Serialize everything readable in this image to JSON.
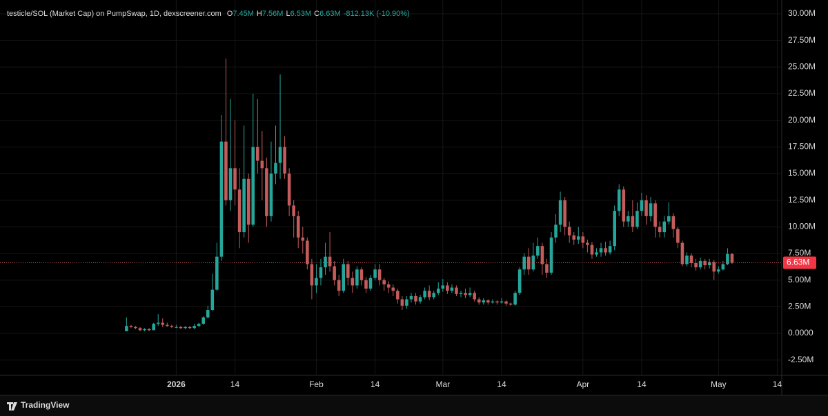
{
  "chart_data": {
    "type": "candlestick",
    "title": "testicle/SOL (Market Cap) on PumpSwap, 1D, dexscreener.com",
    "ohlc_legend": [
      {
        "key": "O",
        "value": "7.45M"
      },
      {
        "key": "H",
        "value": "7.56M"
      },
      {
        "key": "L",
        "value": "6.53M"
      },
      {
        "key": "C",
        "value": "6.63M"
      }
    ],
    "change": "-812.13K (-10.90%)",
    "last_price": {
      "value": 6.63,
      "label": "6.63M"
    },
    "up_color": "#26a69a",
    "down_color": "#c45c5c",
    "grid": true,
    "footer": "TradingView",
    "xlim": [
      "2025-11-23",
      "2026-05-15"
    ],
    "xticks": [
      {
        "value": "2026-01-01",
        "label": "2026"
      },
      {
        "value": "2026-01-14",
        "label": "14"
      },
      {
        "value": "2026-02-01",
        "label": "Feb"
      },
      {
        "value": "2026-02-14",
        "label": "14"
      },
      {
        "value": "2026-03-01",
        "label": "Mar"
      },
      {
        "value": "2026-03-14",
        "label": "14"
      },
      {
        "value": "2026-04-01",
        "label": "Apr"
      },
      {
        "value": "2026-04-14",
        "label": "14"
      },
      {
        "value": "2026-05-01",
        "label": "May"
      },
      {
        "value": "2026-05-14",
        "label": "14"
      }
    ],
    "ylim": [
      -3.94,
      31.29
    ],
    "yticks": [
      {
        "value": -2.5,
        "label": "-2.50M"
      },
      {
        "value": 0,
        "label": "0.0000"
      },
      {
        "value": 2.5,
        "label": "2.50M"
      },
      {
        "value": 5,
        "label": "5.00M"
      },
      {
        "value": 7.5,
        "label": "7.50M"
      },
      {
        "value": 10,
        "label": "10.00M"
      },
      {
        "value": 12.5,
        "label": "12.50M"
      },
      {
        "value": 15,
        "label": "15.00M"
      },
      {
        "value": 17.5,
        "label": "17.50M"
      },
      {
        "value": 20,
        "label": "20.00M"
      },
      {
        "value": 22.5,
        "label": "22.50M"
      },
      {
        "value": 25,
        "label": "25.00M"
      },
      {
        "value": 27.5,
        "label": "27.50M"
      },
      {
        "value": 30,
        "label": "30.00M"
      }
    ],
    "x": [
      "2025-12-21",
      "2025-12-22",
      "2025-12-23",
      "2025-12-24",
      "2025-12-25",
      "2025-12-26",
      "2025-12-27",
      "2025-12-28",
      "2025-12-29",
      "2025-12-30",
      "2025-12-31",
      "2026-01-01",
      "2026-01-02",
      "2026-01-03",
      "2026-01-04",
      "2026-01-05",
      "2026-01-06",
      "2026-01-07",
      "2026-01-08",
      "2026-01-09",
      "2026-01-10",
      "2026-01-11",
      "2026-01-12",
      "2026-01-13",
      "2026-01-14",
      "2026-01-15",
      "2026-01-16",
      "2026-01-17",
      "2026-01-18",
      "2026-01-19",
      "2026-01-20",
      "2026-01-21",
      "2026-01-22",
      "2026-01-23",
      "2026-01-24",
      "2026-01-25",
      "2026-01-26",
      "2026-01-27",
      "2026-01-28",
      "2026-01-29",
      "2026-01-30",
      "2026-01-31",
      "2026-02-01",
      "2026-02-02",
      "2026-02-03",
      "2026-02-04",
      "2026-02-05",
      "2026-02-06",
      "2026-02-07",
      "2026-02-08",
      "2026-02-09",
      "2026-02-10",
      "2026-02-11",
      "2026-02-12",
      "2026-02-13",
      "2026-02-14",
      "2026-02-15",
      "2026-02-16",
      "2026-02-17",
      "2026-02-18",
      "2026-02-19",
      "2026-02-20",
      "2026-02-21",
      "2026-02-22",
      "2026-02-23",
      "2026-02-24",
      "2026-02-25",
      "2026-02-26",
      "2026-02-27",
      "2026-02-28",
      "2026-03-01",
      "2026-03-02",
      "2026-03-03",
      "2026-03-04",
      "2026-03-05",
      "2026-03-06",
      "2026-03-07",
      "2026-03-08",
      "2026-03-09",
      "2026-03-10",
      "2026-03-11",
      "2026-03-12",
      "2026-03-13",
      "2026-03-14",
      "2026-03-15",
      "2026-03-16",
      "2026-03-17",
      "2026-03-18",
      "2026-03-19",
      "2026-03-20",
      "2026-03-21",
      "2026-03-22",
      "2026-03-23",
      "2026-03-24",
      "2026-03-25",
      "2026-03-26",
      "2026-03-27",
      "2026-03-28",
      "2026-03-29",
      "2026-03-30",
      "2026-03-31",
      "2026-04-01",
      "2026-04-02",
      "2026-04-03",
      "2026-04-04",
      "2026-04-05",
      "2026-04-06",
      "2026-04-07",
      "2026-04-08",
      "2026-04-09",
      "2026-04-10",
      "2026-04-11",
      "2026-04-12",
      "2026-04-13",
      "2026-04-14",
      "2026-04-15",
      "2026-04-16",
      "2026-04-17",
      "2026-04-18",
      "2026-04-19",
      "2026-04-20",
      "2026-04-21",
      "2026-04-22",
      "2026-04-23",
      "2026-04-24",
      "2026-04-25",
      "2026-04-26",
      "2026-04-27",
      "2026-04-28",
      "2026-04-29",
      "2026-04-30",
      "2026-05-01",
      "2026-05-02",
      "2026-05-03",
      "2026-05-04"
    ],
    "candles": [
      [
        0.2,
        1.5,
        0.2,
        0.7
      ],
      [
        0.7,
        0.8,
        0.5,
        0.6
      ],
      [
        0.6,
        0.7,
        0.4,
        0.5
      ],
      [
        0.5,
        0.6,
        0.2,
        0.3
      ],
      [
        0.3,
        0.5,
        0.2,
        0.4
      ],
      [
        0.4,
        0.5,
        0.2,
        0.3
      ],
      [
        0.3,
        1.0,
        0.3,
        0.9
      ],
      [
        0.9,
        1.8,
        0.7,
        1.0
      ],
      [
        1.0,
        1.4,
        0.6,
        0.8
      ],
      [
        0.8,
        1.0,
        0.6,
        0.7
      ],
      [
        0.7,
        0.8,
        0.5,
        0.6
      ],
      [
        0.6,
        0.8,
        0.5,
        0.6
      ],
      [
        0.6,
        0.7,
        0.4,
        0.5
      ],
      [
        0.5,
        0.7,
        0.4,
        0.6
      ],
      [
        0.6,
        0.7,
        0.4,
        0.5
      ],
      [
        0.5,
        0.9,
        0.4,
        0.7
      ],
      [
        0.7,
        1.0,
        0.6,
        0.9
      ],
      [
        0.9,
        1.6,
        0.8,
        1.5
      ],
      [
        1.5,
        2.6,
        1.4,
        2.2
      ],
      [
        2.2,
        5.6,
        2.1,
        4.1
      ],
      [
        4.1,
        8.5,
        4.0,
        7.2
      ],
      [
        7.2,
        20.5,
        6.8,
        18.0
      ],
      [
        18.0,
        25.8,
        12.0,
        12.5
      ],
      [
        12.5,
        22.0,
        11.5,
        15.5
      ],
      [
        15.5,
        20.0,
        12.0,
        13.5
      ],
      [
        13.5,
        15.5,
        8.0,
        9.5
      ],
      [
        9.5,
        19.5,
        9.0,
        14.5
      ],
      [
        14.5,
        15.0,
        8.5,
        10.2
      ],
      [
        10.2,
        22.5,
        10.0,
        17.5
      ],
      [
        17.5,
        22.0,
        15.0,
        16.2
      ],
      [
        16.2,
        19.0,
        12.5,
        15.5
      ],
      [
        15.5,
        16.5,
        10.0,
        11.0
      ],
      [
        11.0,
        18.0,
        10.5,
        15.0
      ],
      [
        15.0,
        19.5,
        14.0,
        16.0
      ],
      [
        16.0,
        24.3,
        14.5,
        17.5
      ],
      [
        17.5,
        18.5,
        14.5,
        15.0
      ],
      [
        15.0,
        15.5,
        11.0,
        12.0
      ],
      [
        12.0,
        12.5,
        9.0,
        11.0
      ],
      [
        11.0,
        11.5,
        8.0,
        9.0
      ],
      [
        9.0,
        10.0,
        7.5,
        8.7
      ],
      [
        8.7,
        9.0,
        6.0,
        6.5
      ],
      [
        6.5,
        7.0,
        3.2,
        4.5
      ],
      [
        4.5,
        6.5,
        3.8,
        5.2
      ],
      [
        5.2,
        7.0,
        4.5,
        6.2
      ],
      [
        6.2,
        8.5,
        5.5,
        7.2
      ],
      [
        7.2,
        9.5,
        5.8,
        6.3
      ],
      [
        6.3,
        6.8,
        4.5,
        5.0
      ],
      [
        5.0,
        5.5,
        3.5,
        4.0
      ],
      [
        4.0,
        7.0,
        3.8,
        6.5
      ],
      [
        6.5,
        6.8,
        4.5,
        5.2
      ],
      [
        5.2,
        5.8,
        3.8,
        4.5
      ],
      [
        4.5,
        6.3,
        4.2,
        6.0
      ],
      [
        6.0,
        6.2,
        4.5,
        5.0
      ],
      [
        5.0,
        5.3,
        3.8,
        4.2
      ],
      [
        4.2,
        5.5,
        4.0,
        5.2
      ],
      [
        5.2,
        6.5,
        5.0,
        6.0
      ],
      [
        6.0,
        6.5,
        4.5,
        5.0
      ],
      [
        5.0,
        5.2,
        4.0,
        4.6
      ],
      [
        4.6,
        4.9,
        3.8,
        4.3
      ],
      [
        4.3,
        4.6,
        3.5,
        4.0
      ],
      [
        4.0,
        4.2,
        2.8,
        3.2
      ],
      [
        3.2,
        3.5,
        2.2,
        2.6
      ],
      [
        2.6,
        3.5,
        2.3,
        3.2
      ],
      [
        3.2,
        3.8,
        2.9,
        3.5
      ],
      [
        3.5,
        3.8,
        2.7,
        3.0
      ],
      [
        3.0,
        3.6,
        2.8,
        3.4
      ],
      [
        3.4,
        4.3,
        3.2,
        4.0
      ],
      [
        4.0,
        4.5,
        3.1,
        3.4
      ],
      [
        3.4,
        4.0,
        3.2,
        3.8
      ],
      [
        3.8,
        4.8,
        3.6,
        4.2
      ],
      [
        4.2,
        5.1,
        3.9,
        4.5
      ],
      [
        4.5,
        4.8,
        3.7,
        4.0
      ],
      [
        4.0,
        4.6,
        3.8,
        4.3
      ],
      [
        4.3,
        4.5,
        3.5,
        3.7
      ],
      [
        3.7,
        4.0,
        3.4,
        3.8
      ],
      [
        3.8,
        4.2,
        3.3,
        3.6
      ],
      [
        3.6,
        4.3,
        3.4,
        3.8
      ],
      [
        3.8,
        4.0,
        3.0,
        3.2
      ],
      [
        3.2,
        3.4,
        2.7,
        2.9
      ],
      [
        2.9,
        3.3,
        2.7,
        3.1
      ],
      [
        3.1,
        3.2,
        2.7,
        2.9
      ],
      [
        2.9,
        3.2,
        2.8,
        3.0
      ],
      [
        3.0,
        3.1,
        2.7,
        2.9
      ],
      [
        2.9,
        3.3,
        2.8,
        3.0
      ],
      [
        3.0,
        3.1,
        2.6,
        2.8
      ],
      [
        2.8,
        2.9,
        2.6,
        2.7
      ],
      [
        2.7,
        4.0,
        2.6,
        3.8
      ],
      [
        3.8,
        6.2,
        3.6,
        6.0
      ],
      [
        6.0,
        7.5,
        5.5,
        7.2
      ],
      [
        7.2,
        8.0,
        5.5,
        6.0
      ],
      [
        6.0,
        8.5,
        5.8,
        7.3
      ],
      [
        7.3,
        9.0,
        7.0,
        8.2
      ],
      [
        8.2,
        8.5,
        5.5,
        6.5
      ],
      [
        6.5,
        7.0,
        5.2,
        5.7
      ],
      [
        5.7,
        9.5,
        5.5,
        9.0
      ],
      [
        9.0,
        11.2,
        8.5,
        10.2
      ],
      [
        10.2,
        13.3,
        9.5,
        12.5
      ],
      [
        12.5,
        12.8,
        9.2,
        10.0
      ],
      [
        10.0,
        10.5,
        8.5,
        9.2
      ],
      [
        9.2,
        9.5,
        8.3,
        8.8
      ],
      [
        8.8,
        10.0,
        8.4,
        9.1
      ],
      [
        9.1,
        9.5,
        8.0,
        8.5
      ],
      [
        8.5,
        8.8,
        7.6,
        8.3
      ],
      [
        8.3,
        8.6,
        7.0,
        7.4
      ],
      [
        7.4,
        8.0,
        7.2,
        7.6
      ],
      [
        7.6,
        8.5,
        7.2,
        8.0
      ],
      [
        8.0,
        8.6,
        7.3,
        7.6
      ],
      [
        7.6,
        8.7,
        7.4,
        8.2
      ],
      [
        8.2,
        12.0,
        7.8,
        11.5
      ],
      [
        11.5,
        14.0,
        11.0,
        13.5
      ],
      [
        13.5,
        13.8,
        10.0,
        10.5
      ],
      [
        10.5,
        11.5,
        10.0,
        11.0
      ],
      [
        11.0,
        12.5,
        9.5,
        10.0
      ],
      [
        10.0,
        12.3,
        9.8,
        11.5
      ],
      [
        11.5,
        13.2,
        11.0,
        12.5
      ],
      [
        12.5,
        13.0,
        10.2,
        11.0
      ],
      [
        11.0,
        12.8,
        10.5,
        12.2
      ],
      [
        12.2,
        12.5,
        9.0,
        10.0
      ],
      [
        10.0,
        10.5,
        9.0,
        9.5
      ],
      [
        9.5,
        11.0,
        9.0,
        10.5
      ],
      [
        10.5,
        12.3,
        10.2,
        11.0
      ],
      [
        11.0,
        11.3,
        9.0,
        9.8
      ],
      [
        9.8,
        10.0,
        8.0,
        8.5
      ],
      [
        8.5,
        8.7,
        6.3,
        6.5
      ],
      [
        6.5,
        7.6,
        6.3,
        7.3
      ],
      [
        7.3,
        7.5,
        6.2,
        6.6
      ],
      [
        6.6,
        7.0,
        5.9,
        6.2
      ],
      [
        6.2,
        7.1,
        6.0,
        6.8
      ],
      [
        6.8,
        7.0,
        6.0,
        6.4
      ],
      [
        6.4,
        7.0,
        6.1,
        6.7
      ],
      [
        6.7,
        6.9,
        5.0,
        5.8
      ],
      [
        5.8,
        6.3,
        5.6,
        6.0
      ],
      [
        6.0,
        6.8,
        5.9,
        6.5
      ],
      [
        6.5,
        8.0,
        6.4,
        7.45
      ],
      [
        7.45,
        7.56,
        6.53,
        6.63
      ]
    ]
  }
}
